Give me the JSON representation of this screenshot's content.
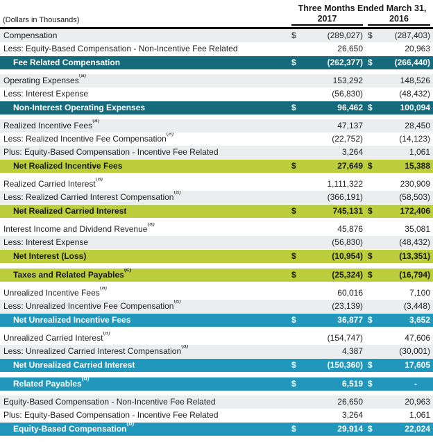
{
  "header": {
    "left_note": "(Dollars in Thousands)",
    "period_title": "Three Months Ended March 31,",
    "col_2017": "2017",
    "col_2016": "2016"
  },
  "colors": {
    "teal": "#156A7B",
    "green": "#BCCE3B",
    "blue": "#2097BB",
    "alt_row": "#ECEDEE",
    "text_dark": "#1A1A1A"
  },
  "rows": [
    {
      "type": "data",
      "bg": "alt",
      "label": "Compensation",
      "sup": "",
      "d1": "$",
      "v1": "(289,027)",
      "d2": "$",
      "v2": "(287,403)"
    },
    {
      "type": "data",
      "bg": "white",
      "label": "Less: Equity-Based Compensation - Non-Incentive Fee Related",
      "sup": "",
      "d1": "",
      "v1": "26,650",
      "d2": "",
      "v2": "20,963"
    },
    {
      "type": "total",
      "color": "teal",
      "label": "Fee Related Compensation",
      "sup": "",
      "d1": "$",
      "v1": "(262,377)",
      "d2": "$",
      "v2": "(266,440)"
    },
    {
      "type": "spacer"
    },
    {
      "type": "data",
      "bg": "alt",
      "label": "Operating Expenses",
      "sup": "(a)",
      "d1": "",
      "v1": "153,292",
      "d2": "",
      "v2": "148,526"
    },
    {
      "type": "data",
      "bg": "white",
      "label": "Less: Interest Expense",
      "sup": "",
      "d1": "",
      "v1": "(56,830)",
      "d2": "",
      "v2": "(48,432)"
    },
    {
      "type": "total",
      "color": "teal",
      "label": "Non-Interest Operating Expenses",
      "sup": "",
      "d1": "$",
      "v1": "96,462",
      "d2": "$",
      "v2": "100,094"
    },
    {
      "type": "spacer"
    },
    {
      "type": "data",
      "bg": "alt",
      "label": "Realized Incentive Fees",
      "sup": "(a)",
      "d1": "",
      "v1": "47,137",
      "d2": "",
      "v2": "28,450"
    },
    {
      "type": "data",
      "bg": "white",
      "label": "Less: Realized Incentive Fee Compensation",
      "sup": "(a)",
      "d1": "",
      "v1": "(22,752)",
      "d2": "",
      "v2": "(14,123)"
    },
    {
      "type": "data",
      "bg": "alt",
      "label": "Plus: Equity-Based Compensation - Incentive Fee Related",
      "sup": "",
      "d1": "",
      "v1": "3,264",
      "d2": "",
      "v2": "1,061"
    },
    {
      "type": "total",
      "color": "green",
      "label": "Net Realized Incentive Fees",
      "sup": "",
      "d1": "$",
      "v1": "27,649",
      "d2": "$",
      "v2": "15,388"
    },
    {
      "type": "spacer"
    },
    {
      "type": "data",
      "bg": "white",
      "label": "Realized Carried Interest",
      "sup": "(a)",
      "d1": "",
      "v1": "1,111,322",
      "d2": "",
      "v2": "230,909"
    },
    {
      "type": "data",
      "bg": "alt",
      "label": "Less: Realized Carried Interest Compensation",
      "sup": "(a)",
      "d1": "",
      "v1": "(366,191)",
      "d2": "",
      "v2": "(58,503)"
    },
    {
      "type": "total",
      "color": "green",
      "label": "Net Realized Carried Interest",
      "sup": "",
      "d1": "$",
      "v1": "745,131",
      "d2": "$",
      "v2": "172,406"
    },
    {
      "type": "spacer"
    },
    {
      "type": "data",
      "bg": "white",
      "label": "Interest Income and Dividend Revenue",
      "sup": "(a)",
      "d1": "",
      "v1": "45,876",
      "d2": "",
      "v2": "35,081"
    },
    {
      "type": "data",
      "bg": "alt",
      "label": "Less: Interest Expense",
      "sup": "",
      "d1": "",
      "v1": "(56,830)",
      "d2": "",
      "v2": "(48,432)"
    },
    {
      "type": "total",
      "color": "green",
      "label": "Net Interest (Loss)",
      "sup": "",
      "d1": "$",
      "v1": "(10,954)",
      "d2": "$",
      "v2": "(13,351)"
    },
    {
      "type": "spacer"
    },
    {
      "type": "total",
      "color": "green",
      "label": "Taxes and Related Payables",
      "sup": "(c)",
      "d1": "$",
      "v1": "(25,324)",
      "d2": "$",
      "v2": "(16,794)"
    },
    {
      "type": "spacer"
    },
    {
      "type": "data",
      "bg": "white",
      "label": "Unrealized Incentive Fees",
      "sup": "(a)",
      "d1": "",
      "v1": "60,016",
      "d2": "",
      "v2": "7,100"
    },
    {
      "type": "data",
      "bg": "alt",
      "label": "Less: Unrealized Incentive Fee Compensation",
      "sup": "(a)",
      "d1": "",
      "v1": "(23,139)",
      "d2": "",
      "v2": "(3,448)"
    },
    {
      "type": "total",
      "color": "blue",
      "label": "Net Unrealized Incentive Fees",
      "sup": "",
      "d1": "$",
      "v1": "36,877",
      "d2": "$",
      "v2": "3,652"
    },
    {
      "type": "spacer"
    },
    {
      "type": "data",
      "bg": "white",
      "label": "Unrealized Carried Interest",
      "sup": "(a)",
      "d1": "",
      "v1": "(154,747)",
      "d2": "",
      "v2": "47,606"
    },
    {
      "type": "data",
      "bg": "alt",
      "label": "Less: Unrealized Carried Interest Compensation",
      "sup": "(a)",
      "d1": "",
      "v1": "4,387",
      "d2": "",
      "v2": "(30,001)"
    },
    {
      "type": "total",
      "color": "blue",
      "label": "Net Unrealized Carried Interest",
      "sup": "",
      "d1": "$",
      "v1": "(150,360)",
      "d2": "$",
      "v2": "17,605"
    },
    {
      "type": "spacer"
    },
    {
      "type": "total",
      "color": "blue",
      "label": "Related Payables",
      "sup": "(d)",
      "d1": "$",
      "v1": "6,519",
      "d2": "$",
      "v2": "-"
    },
    {
      "type": "spacer"
    },
    {
      "type": "data",
      "bg": "alt",
      "label": "Equity-Based Compensation - Non-Incentive Fee Related",
      "sup": "",
      "d1": "",
      "v1": "26,650",
      "d2": "",
      "v2": "20,963"
    },
    {
      "type": "data",
      "bg": "white",
      "label": "Plus: Equity-Based Compensation - Incentive Fee Related",
      "sup": "",
      "d1": "",
      "v1": "3,264",
      "d2": "",
      "v2": "1,061"
    },
    {
      "type": "total",
      "color": "blue",
      "label": "Equity-Based Compensation",
      "sup": "(b)",
      "d1": "$",
      "v1": "29,914",
      "d2": "$",
      "v2": "22,024"
    }
  ]
}
